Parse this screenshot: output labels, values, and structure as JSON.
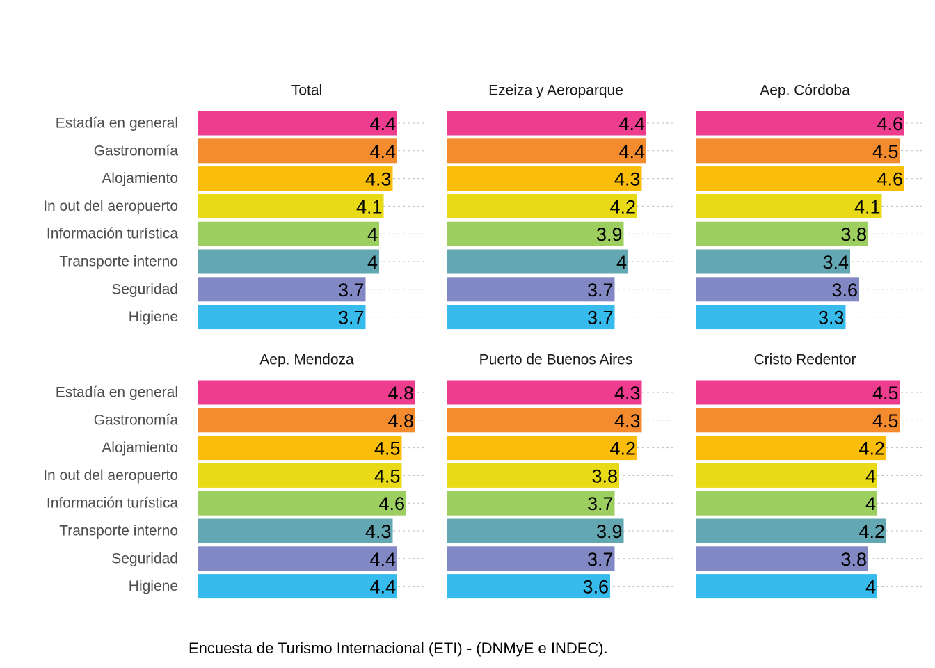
{
  "chart_data": {
    "type": "bar",
    "orientation": "horizontal",
    "categories": [
      "Estadía en general",
      "Gastronomía",
      "Alojamiento",
      "In out del aeropuerto",
      "Información turística",
      "Transporte interno",
      "Seguridad",
      "Higiene"
    ],
    "colors": [
      "#EE3D8F",
      "#F58B2F",
      "#FABE0A",
      "#E8DA16",
      "#9CCE60",
      "#62A7B2",
      "#8288C3",
      "#37BBEC"
    ],
    "xlim": [
      0,
      5
    ],
    "grid": "dashed horizontal",
    "panels": [
      {
        "title": "Total",
        "values": [
          4.4,
          4.4,
          4.3,
          4.1,
          4,
          4,
          3.7,
          3.7
        ]
      },
      {
        "title": "Ezeiza y Aeroparque",
        "values": [
          4.4,
          4.4,
          4.3,
          4.2,
          3.9,
          4,
          3.7,
          3.7
        ]
      },
      {
        "title": "Aep. Córdoba",
        "values": [
          4.6,
          4.5,
          4.6,
          4.1,
          3.8,
          3.4,
          3.6,
          3.3
        ]
      },
      {
        "title": "Aep. Mendoza",
        "values": [
          4.8,
          4.8,
          4.5,
          4.5,
          4.6,
          4.3,
          4.4,
          4.4
        ]
      },
      {
        "title": "Puerto de Buenos Aires",
        "values": [
          4.3,
          4.3,
          4.2,
          3.8,
          3.7,
          3.9,
          3.7,
          3.6
        ]
      },
      {
        "title": "Cristo Redentor",
        "values": [
          4.5,
          4.5,
          4.2,
          4,
          4,
          4.2,
          3.8,
          4
        ]
      }
    ]
  },
  "caption": "Encuesta de Turismo Internacional (ETI) - (DNMyE e INDEC)."
}
